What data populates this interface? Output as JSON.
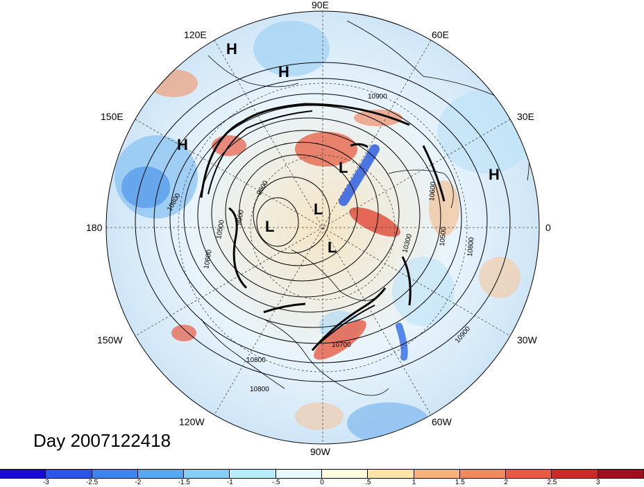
{
  "longitude_labels": [
    "90E",
    "60E",
    "120E",
    "150E",
    "30E",
    "180",
    "0",
    "150W",
    "30W",
    "120W",
    "60W",
    "90W"
  ],
  "pressure_centers": [
    "H",
    "H",
    "H",
    "H",
    "L",
    "L",
    "L",
    "L"
  ],
  "contour_labels": [
    "10900",
    "10800",
    "10600",
    "10500",
    "9900",
    "9600",
    "10300",
    "10800",
    "10800",
    "10700",
    "10900",
    "10500",
    "10600",
    "10800"
  ],
  "title_text": "Day 2007122418",
  "colorbar": {
    "colors": [
      "#1a0ad6",
      "#2a55e6",
      "#3a86ee",
      "#55a8f2",
      "#86cff6",
      "#b8ecfb",
      "#e6f9fd",
      "#fffbdc",
      "#fde3a8",
      "#f7b37a",
      "#f08a5c",
      "#e85a45",
      "#cc2a2a",
      "#a10d1d"
    ],
    "tick_labels": [
      "-3",
      "-2.5",
      "-2",
      "-1.5",
      "-1",
      "-.5",
      "0",
      ".5",
      "1",
      "1.5",
      "2",
      "2.5",
      "3"
    ]
  }
}
